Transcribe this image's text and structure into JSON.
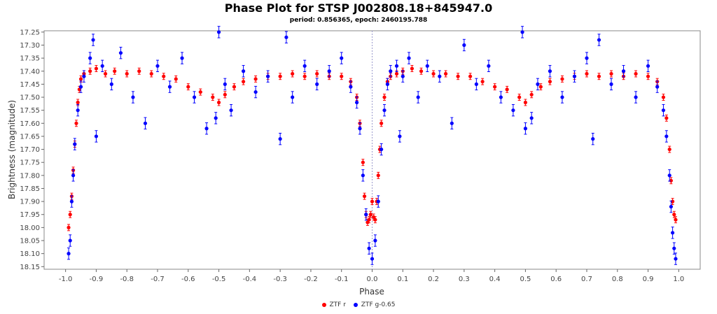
{
  "chart_data": {
    "type": "scatter",
    "title": "Phase Plot for STSP J002808.18+845947.0",
    "subtitle": "period: 0.856365, epoch: 2460195.788",
    "xlabel": "Phase",
    "ylabel": "Brightness (magnitude)",
    "xlim": [
      -1.07,
      1.07
    ],
    "ylim": [
      17.245,
      18.16
    ],
    "y_inverted": true,
    "x_ticks": [
      "-1.0",
      "-0.9",
      "-0.8",
      "-0.7",
      "-0.6",
      "-0.5",
      "-0.4",
      "-0.3",
      "-0.2",
      "-0.1",
      "0.0",
      "0.1",
      "0.2",
      "0.3",
      "0.4",
      "0.5",
      "0.6",
      "0.7",
      "0.8",
      "0.9",
      "1.0"
    ],
    "y_ticks": [
      "17.25",
      "17.30",
      "17.35",
      "17.40",
      "17.45",
      "17.50",
      "17.55",
      "17.60",
      "17.65",
      "17.70",
      "17.75",
      "17.80",
      "17.85",
      "17.90",
      "17.95",
      "18.00",
      "18.05",
      "18.10",
      "18.15"
    ],
    "grid": false,
    "reference_line_x": 0.0,
    "legend_position": "bottom",
    "series": [
      {
        "name": "ZTF r",
        "color": "#ff0000",
        "x": [
          -0.99,
          -0.985,
          -0.98,
          -0.975,
          -0.97,
          -0.965,
          -0.96,
          -0.955,
          -0.95,
          -0.94,
          -0.92,
          -0.9,
          -0.87,
          -0.84,
          -0.8,
          -0.76,
          -0.72,
          -0.68,
          -0.64,
          -0.6,
          -0.56,
          -0.52,
          -0.5,
          -0.48,
          -0.45,
          -0.42,
          -0.38,
          -0.34,
          -0.3,
          -0.26,
          -0.22,
          -0.18,
          -0.14,
          -0.1,
          -0.07,
          -0.05,
          -0.04,
          -0.03,
          -0.025,
          -0.02,
          -0.015,
          -0.01,
          -0.005,
          0.0,
          0.005,
          0.01,
          0.015,
          0.02,
          0.025,
          0.03,
          0.04,
          0.05,
          0.06,
          0.08,
          0.1,
          0.13,
          0.16,
          0.2,
          0.24,
          0.28,
          0.32,
          0.36,
          0.4,
          0.44,
          0.48,
          0.5,
          0.52,
          0.55,
          0.58,
          0.62,
          0.66,
          0.7,
          0.74,
          0.78,
          0.82,
          0.86,
          0.9,
          0.93,
          0.95,
          0.96,
          0.97,
          0.975,
          0.98,
          0.985,
          0.99
        ],
        "y": [
          18.0,
          17.95,
          17.88,
          17.78,
          17.68,
          17.6,
          17.52,
          17.47,
          17.43,
          17.41,
          17.4,
          17.39,
          17.41,
          17.4,
          17.41,
          17.4,
          17.41,
          17.42,
          17.43,
          17.46,
          17.48,
          17.5,
          17.52,
          17.49,
          17.46,
          17.44,
          17.43,
          17.42,
          17.42,
          17.41,
          17.42,
          17.41,
          17.42,
          17.42,
          17.44,
          17.5,
          17.6,
          17.75,
          17.88,
          17.95,
          17.98,
          17.97,
          17.95,
          17.9,
          17.96,
          17.97,
          17.9,
          17.8,
          17.7,
          17.6,
          17.5,
          17.44,
          17.42,
          17.41,
          17.4,
          17.39,
          17.4,
          17.41,
          17.41,
          17.42,
          17.42,
          17.44,
          17.46,
          17.47,
          17.5,
          17.52,
          17.49,
          17.46,
          17.44,
          17.43,
          17.42,
          17.41,
          17.42,
          17.41,
          17.42,
          17.41,
          17.42,
          17.44,
          17.5,
          17.58,
          17.7,
          17.82,
          17.9,
          17.95,
          17.97
        ]
      },
      {
        "name": "ZTF g-0.65",
        "color": "#0000ff",
        "x": [
          -0.99,
          -0.985,
          -0.98,
          -0.975,
          -0.97,
          -0.96,
          -0.95,
          -0.94,
          -0.92,
          -0.91,
          -0.9,
          -0.88,
          -0.85,
          -0.82,
          -0.78,
          -0.74,
          -0.7,
          -0.66,
          -0.62,
          -0.58,
          -0.54,
          -0.51,
          -0.5,
          -0.48,
          -0.46,
          -0.42,
          -0.38,
          -0.34,
          -0.3,
          -0.28,
          -0.26,
          -0.22,
          -0.18,
          -0.14,
          -0.1,
          -0.07,
          -0.05,
          -0.04,
          -0.03,
          -0.02,
          -0.01,
          0.0,
          0.01,
          0.02,
          0.03,
          0.04,
          0.05,
          0.06,
          0.08,
          0.09,
          0.1,
          0.12,
          0.15,
          0.18,
          0.22,
          0.26,
          0.3,
          0.34,
          0.38,
          0.42,
          0.46,
          0.49,
          0.5,
          0.52,
          0.54,
          0.58,
          0.62,
          0.66,
          0.7,
          0.72,
          0.74,
          0.78,
          0.82,
          0.86,
          0.9,
          0.93,
          0.95,
          0.96,
          0.97,
          0.975,
          0.98,
          0.985,
          0.99
        ],
        "y": [
          18.1,
          18.05,
          17.9,
          17.8,
          17.68,
          17.55,
          17.46,
          17.42,
          17.35,
          17.28,
          17.65,
          17.38,
          17.45,
          17.33,
          17.5,
          17.6,
          17.38,
          17.46,
          17.35,
          17.5,
          17.62,
          17.58,
          17.25,
          17.45,
          17.55,
          17.4,
          17.48,
          17.42,
          17.66,
          17.27,
          17.5,
          17.38,
          17.45,
          17.4,
          17.35,
          17.46,
          17.52,
          17.62,
          17.8,
          17.95,
          18.08,
          18.12,
          18.05,
          17.9,
          17.7,
          17.55,
          17.45,
          17.4,
          17.38,
          17.65,
          17.42,
          17.35,
          17.5,
          17.38,
          17.42,
          17.6,
          17.3,
          17.45,
          17.38,
          17.5,
          17.55,
          17.25,
          17.62,
          17.58,
          17.45,
          17.4,
          17.5,
          17.42,
          17.35,
          17.66,
          17.28,
          17.45,
          17.4,
          17.5,
          17.38,
          17.46,
          17.55,
          17.65,
          17.8,
          17.92,
          18.02,
          18.08,
          18.12
        ]
      }
    ]
  }
}
